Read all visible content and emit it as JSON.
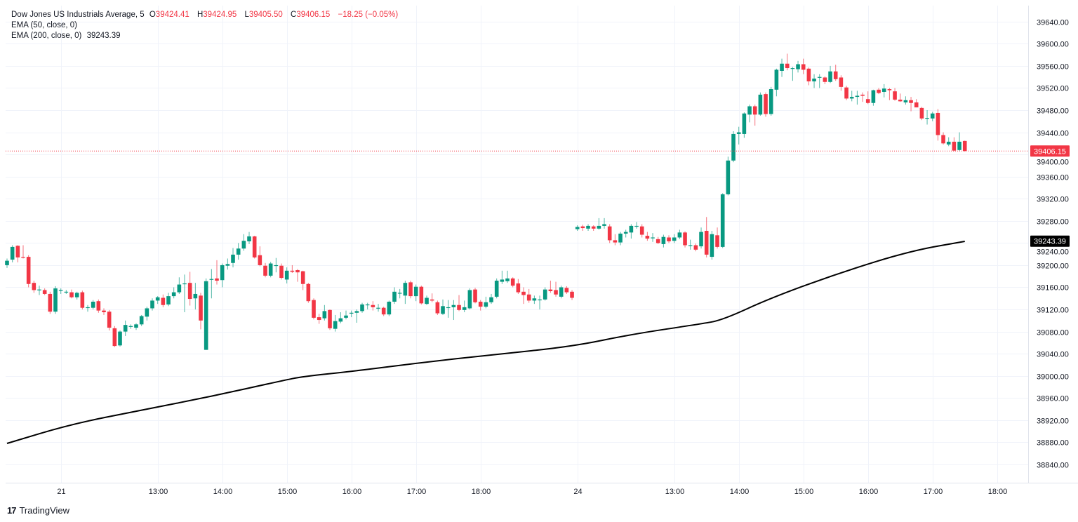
{
  "legend": {
    "symbol": "Dow Jones US Industrials Average, 5",
    "o_label": "O",
    "o": "39424.41",
    "h_label": "H",
    "h": "39424.95",
    "l_label": "L",
    "l": "39405.50",
    "c_label": "C",
    "c": "39406.15",
    "change": "−18.25 (−0.05%)",
    "ema50": "EMA (50, close, 0)",
    "ema200": "EMA (200, close, 0)",
    "ema200_value": "39243.39"
  },
  "branding": {
    "logo_text": "TradingView"
  },
  "chart_data": {
    "type": "candlestick",
    "colors": {
      "up": "#089981",
      "down": "#f23645",
      "ema200": "#000000",
      "grid": "#f0f3fa",
      "last_price": "#f23645"
    },
    "ylim": [
      38807,
      39679
    ],
    "y_ticks": [
      "38840.00",
      "38880.00",
      "38920.00",
      "38960.00",
      "39000.00",
      "39040.00",
      "39080.00",
      "39120.00",
      "39160.00",
      "39200.00",
      "39240.00",
      "39280.00",
      "39320.00",
      "39360.00",
      "39400.00",
      "39440.00",
      "39480.00",
      "39520.00",
      "39560.00",
      "39600.00",
      "39640.00"
    ],
    "x_ticks": [
      {
        "label": "21",
        "index": 10
      },
      {
        "label": "13:00",
        "index": 28
      },
      {
        "label": "14:00",
        "index": 40
      },
      {
        "label": "15:00",
        "index": 52
      },
      {
        "label": "16:00",
        "index": 64
      },
      {
        "label": "17:00",
        "index": 76
      },
      {
        "label": "18:00",
        "index": 88
      },
      {
        "label": "24",
        "index": 106
      },
      {
        "label": "13:00",
        "index": 124
      },
      {
        "label": "14:00",
        "index": 136
      },
      {
        "label": "15:00",
        "index": 148
      },
      {
        "label": "16:00",
        "index": 160
      },
      {
        "label": "17:00",
        "index": 172
      },
      {
        "label": "18:00",
        "index": 184
      }
    ],
    "last_price": {
      "value": 39406.15,
      "label": "39406.15"
    },
    "ema200_label": {
      "value": 39243.39,
      "label": "39243.39"
    },
    "ema200_points": [
      [
        0,
        38878
      ],
      [
        12,
        38913
      ],
      [
        25,
        38938
      ],
      [
        38,
        38963
      ],
      [
        51,
        38991
      ],
      [
        55,
        38999
      ],
      [
        64,
        39008
      ],
      [
        77,
        39024
      ],
      [
        90,
        39038
      ],
      [
        105,
        39053
      ],
      [
        116,
        39075
      ],
      [
        129,
        39094
      ],
      [
        133,
        39101
      ],
      [
        142,
        39141
      ],
      [
        155,
        39187
      ],
      [
        168,
        39226
      ],
      [
        178,
        39243
      ]
    ],
    "ohlc": [
      [
        39200,
        39212,
        39195,
        39208
      ],
      [
        39210,
        39236,
        39205,
        39233
      ],
      [
        39235,
        39236,
        39205,
        39214
      ],
      [
        39215,
        39236,
        39212,
        39214
      ],
      [
        39215,
        39218,
        39160,
        39166
      ],
      [
        39168,
        39172,
        39150,
        39155
      ],
      [
        39155,
        39163,
        39146,
        39156
      ],
      [
        39155,
        39158,
        39146,
        39148
      ],
      [
        39148,
        39152,
        39112,
        39116
      ],
      [
        39116,
        39162,
        39112,
        39158
      ],
      [
        39155,
        39158,
        39148,
        39155
      ],
      [
        39152,
        39155,
        39148,
        39152
      ],
      [
        39151,
        39156,
        39140,
        39142
      ],
      [
        39142,
        39152,
        39138,
        39150
      ],
      [
        39151,
        39154,
        39120,
        39123
      ],
      [
        39124,
        39128,
        39116,
        39124
      ],
      [
        39123,
        39137,
        39120,
        39134
      ],
      [
        39135,
        39138,
        39114,
        39118
      ],
      [
        39118,
        39122,
        39110,
        39115
      ],
      [
        39116,
        39119,
        39082,
        39087
      ],
      [
        39086,
        39090,
        39052,
        39054
      ],
      [
        39055,
        39082,
        39053,
        39080
      ],
      [
        39080,
        39100,
        39072,
        39092
      ],
      [
        39090,
        39093,
        39085,
        39090
      ],
      [
        39087,
        39095,
        39083,
        39093
      ],
      [
        39093,
        39110,
        39090,
        39108
      ],
      [
        39107,
        39125,
        39100,
        39122
      ],
      [
        39122,
        39140,
        39118,
        39136
      ],
      [
        39136,
        39144,
        39130,
        39142
      ],
      [
        39141,
        39147,
        39124,
        39128
      ],
      [
        39129,
        39150,
        39126,
        39144
      ],
      [
        39144,
        39160,
        39140,
        39151
      ],
      [
        39151,
        39178,
        39148,
        39165
      ],
      [
        39166,
        39183,
        39115,
        39167
      ],
      [
        39168,
        39188,
        39127,
        39139
      ],
      [
        39140,
        39168,
        39120,
        39148
      ],
      [
        39145,
        39150,
        39084,
        39100
      ],
      [
        39047,
        39176,
        39047,
        39171
      ],
      [
        39175,
        39193,
        39140,
        39175
      ],
      [
        39176,
        39209,
        39165,
        39172
      ],
      [
        39173,
        39203,
        39160,
        39200
      ],
      [
        39199,
        39212,
        39192,
        39202
      ],
      [
        39204,
        39231,
        39196,
        39219
      ],
      [
        39219,
        39240,
        39210,
        39230
      ],
      [
        39230,
        39256,
        39226,
        39244
      ],
      [
        39243,
        39260,
        39238,
        39252
      ],
      [
        39252,
        39253,
        39212,
        39214
      ],
      [
        39218,
        39234,
        39198,
        39200
      ],
      [
        39199,
        39204,
        39178,
        39181
      ],
      [
        39181,
        39206,
        39178,
        39203
      ],
      [
        39200,
        39213,
        39187,
        39200
      ],
      [
        39199,
        39203,
        39174,
        39177
      ],
      [
        39174,
        39196,
        39167,
        39190
      ],
      [
        39190,
        39200,
        39186,
        39188
      ],
      [
        39191,
        39193,
        39170,
        39187
      ],
      [
        39189,
        39190,
        39155,
        39166
      ],
      [
        39166,
        39168,
        39132,
        39135
      ],
      [
        39137,
        39140,
        39102,
        39105
      ],
      [
        39106,
        39112,
        39094,
        39101
      ],
      [
        39104,
        39128,
        39100,
        39117
      ],
      [
        39119,
        39120,
        39083,
        39086
      ],
      [
        39085,
        39110,
        39080,
        39099
      ],
      [
        39098,
        39115,
        39095,
        39104
      ],
      [
        39105,
        39118,
        39102,
        39109
      ],
      [
        39114,
        39118,
        39106,
        39114
      ],
      [
        39114,
        39120,
        39096,
        39117
      ],
      [
        39117,
        39132,
        39114,
        39129
      ],
      [
        39129,
        39132,
        39120,
        39129
      ],
      [
        39128,
        39135,
        39118,
        39124
      ],
      [
        39123,
        39130,
        39116,
        39123
      ],
      [
        39123,
        39125,
        39108,
        39111
      ],
      [
        39111,
        39136,
        39108,
        39134
      ],
      [
        39134,
        39160,
        39130,
        39152
      ],
      [
        39150,
        39157,
        39140,
        39150
      ],
      [
        39145,
        39172,
        39130,
        39168
      ],
      [
        39169,
        39172,
        39140,
        39144
      ],
      [
        39144,
        39165,
        39135,
        39161
      ],
      [
        39161,
        39163,
        39129,
        39131
      ],
      [
        39130,
        39145,
        39128,
        39141
      ],
      [
        39138,
        39149,
        39133,
        39136
      ],
      [
        39133,
        39136,
        39110,
        39113
      ],
      [
        39112,
        39138,
        39110,
        39126
      ],
      [
        39124,
        39137,
        39105,
        39124
      ],
      [
        39124,
        39137,
        39101,
        39128
      ],
      [
        39128,
        39146,
        39117,
        39119
      ],
      [
        39119,
        39136,
        39115,
        39124
      ],
      [
        39122,
        39158,
        39120,
        39155
      ],
      [
        39156,
        39159,
        39131,
        39133
      ],
      [
        39134,
        39137,
        39118,
        39125
      ],
      [
        39125,
        39143,
        39122,
        39133
      ],
      [
        39133,
        39148,
        39130,
        39142
      ],
      [
        39143,
        39176,
        39140,
        39172
      ],
      [
        39170,
        39190,
        39166,
        39174
      ],
      [
        39171,
        39190,
        39168,
        39176
      ],
      [
        39176,
        39178,
        39160,
        39163
      ],
      [
        39167,
        39175,
        39148,
        39151
      ],
      [
        39152,
        39160,
        39130,
        39146
      ],
      [
        39147,
        39157,
        39132,
        39136
      ],
      [
        39136,
        39145,
        39130,
        39140
      ],
      [
        39138,
        39145,
        39120,
        39138
      ],
      [
        39138,
        39160,
        39136,
        39156
      ],
      [
        39156,
        39172,
        39150,
        39153
      ],
      [
        39155,
        39170,
        39143,
        39147
      ],
      [
        39143,
        39163,
        39140,
        39160
      ],
      [
        39159,
        39162,
        39148,
        39151
      ],
      [
        39152,
        39155,
        39137,
        39141
      ],
      [
        39265,
        39272,
        39262,
        39269
      ],
      [
        39270,
        39273,
        39262,
        39267
      ],
      [
        39266,
        39274,
        39262,
        39271
      ],
      [
        39270,
        39272,
        39262,
        39266
      ],
      [
        39266,
        39285,
        39264,
        39271
      ],
      [
        39271,
        39285,
        39266,
        39274
      ],
      [
        39270,
        39274,
        39240,
        39245
      ],
      [
        39245,
        39256,
        39236,
        39241
      ],
      [
        39241,
        39260,
        39236,
        39257
      ],
      [
        39257,
        39264,
        39250,
        39260
      ],
      [
        39259,
        39274,
        39248,
        39271
      ],
      [
        39271,
        39278,
        39266,
        39271
      ],
      [
        39270,
        39274,
        39250,
        39255
      ],
      [
        39253,
        39260,
        39244,
        39248
      ],
      [
        39250,
        39258,
        39242,
        39250
      ],
      [
        39247,
        39251,
        39238,
        39240
      ],
      [
        39238,
        39255,
        39232,
        39251
      ],
      [
        39250,
        39254,
        39240,
        39243
      ],
      [
        39244,
        39256,
        39240,
        39250
      ],
      [
        39250,
        39264,
        39247,
        39259
      ],
      [
        39259,
        39261,
        39232,
        39236
      ],
      [
        39236,
        39246,
        39228,
        39236
      ],
      [
        39236,
        39239,
        39225,
        39228
      ],
      [
        39234,
        39268,
        39230,
        39260
      ],
      [
        39262,
        39287,
        39214,
        39219
      ],
      [
        39215,
        39262,
        39210,
        39256
      ],
      [
        39254,
        39268,
        39230,
        39233
      ],
      [
        39233,
        39330,
        39231,
        39328
      ],
      [
        39328,
        39396,
        39326,
        39389
      ],
      [
        39389,
        39442,
        39386,
        39437
      ],
      [
        39437,
        39450,
        39418,
        39440
      ],
      [
        39437,
        39476,
        39430,
        39474
      ],
      [
        39472,
        39490,
        39458,
        39487
      ],
      [
        39487,
        39490,
        39452,
        39472
      ],
      [
        39472,
        39512,
        39470,
        39508
      ],
      [
        39509,
        39512,
        39468,
        39473
      ],
      [
        39473,
        39522,
        39470,
        39518
      ],
      [
        39517,
        39555,
        39505,
        39553
      ],
      [
        39551,
        39573,
        39540,
        39564
      ],
      [
        39564,
        39582,
        39552,
        39556
      ],
      [
        39556,
        39558,
        39533,
        39556
      ],
      [
        39554,
        39569,
        39548,
        39563
      ],
      [
        39563,
        39573,
        39545,
        39553
      ],
      [
        39555,
        39557,
        39525,
        39532
      ],
      [
        39532,
        39545,
        39520,
        39537
      ],
      [
        39540,
        39545,
        39520,
        39540
      ],
      [
        39539,
        39541,
        39527,
        39531
      ],
      [
        39531,
        39560,
        39529,
        39550
      ],
      [
        39550,
        39562,
        39533,
        39536
      ],
      [
        39539,
        39543,
        39515,
        39522
      ],
      [
        39521,
        39524,
        39498,
        39501
      ],
      [
        39501,
        39515,
        39496,
        39504
      ],
      [
        39504,
        39515,
        39490,
        39506
      ],
      [
        39508,
        39512,
        39495,
        39506
      ],
      [
        39500,
        39514,
        39491,
        39493
      ],
      [
        39493,
        39517,
        39488,
        39516
      ],
      [
        39517,
        39520,
        39509,
        39511
      ],
      [
        39513,
        39527,
        39503,
        39519
      ],
      [
        39518,
        39520,
        39498,
        39516
      ],
      [
        39514,
        39520,
        39497,
        39499
      ],
      [
        39499,
        39510,
        39495,
        39496
      ],
      [
        39494,
        39505,
        39490,
        39498
      ],
      [
        39498,
        39504,
        39478,
        39493
      ],
      [
        39494,
        39500,
        39485,
        39485
      ],
      [
        39484,
        39486,
        39462,
        39465
      ],
      [
        39466,
        39480,
        39454,
        39466
      ],
      [
        39465,
        39477,
        39460,
        39474
      ],
      [
        39475,
        39482,
        39425,
        39435
      ],
      [
        39435,
        39440,
        39418,
        39420
      ],
      [
        39418,
        39431,
        39415,
        39423
      ],
      [
        39423,
        39431,
        39406,
        39407
      ],
      [
        39408,
        39440,
        39406,
        39423
      ],
      [
        39424.41,
        39424.95,
        39405.5,
        39406.15
      ]
    ]
  }
}
